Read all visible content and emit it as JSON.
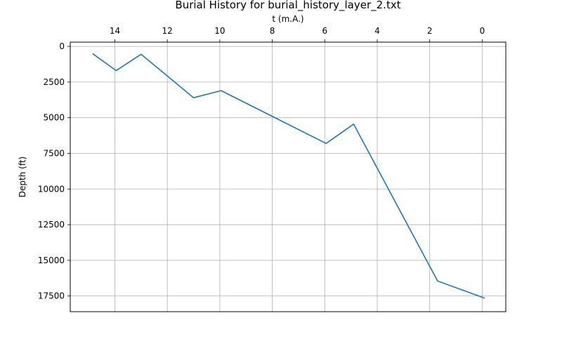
{
  "chart_data": {
    "type": "line",
    "title": "Burial History for burial_history_layer_2.txt",
    "xlabel": "t (m.A.)",
    "ylabel": "Depth (ft)",
    "x_axis_position": "top",
    "x_inverted": true,
    "y_inverted": true,
    "xlim": [
      15.7,
      -0.9
    ],
    "ylim": [
      -300,
      18600
    ],
    "x_ticks": [
      14,
      12,
      10,
      8,
      6,
      4,
      2,
      0
    ],
    "x_tick_labels": [
      "14",
      "12",
      "10",
      "8",
      "6",
      "4",
      "2",
      "0"
    ],
    "y_ticks": [
      0,
      2500,
      5000,
      7500,
      10000,
      12500,
      15000,
      17500
    ],
    "y_tick_labels": [
      "0",
      "2500",
      "5000",
      "7500",
      "10000",
      "12500",
      "15000",
      "17500"
    ],
    "grid": true,
    "series": [
      {
        "color": "#1f77b4",
        "points": [
          {
            "x": 14.85,
            "y": 500
          },
          {
            "x": 13.95,
            "y": 1700
          },
          {
            "x": 13.0,
            "y": 550
          },
          {
            "x": 11.0,
            "y": 3600
          },
          {
            "x": 9.95,
            "y": 3100
          },
          {
            "x": 5.95,
            "y": 6800
          },
          {
            "x": 4.9,
            "y": 5450
          },
          {
            "x": 1.7,
            "y": 16450
          },
          {
            "x": -0.1,
            "y": 17650
          }
        ]
      }
    ]
  }
}
